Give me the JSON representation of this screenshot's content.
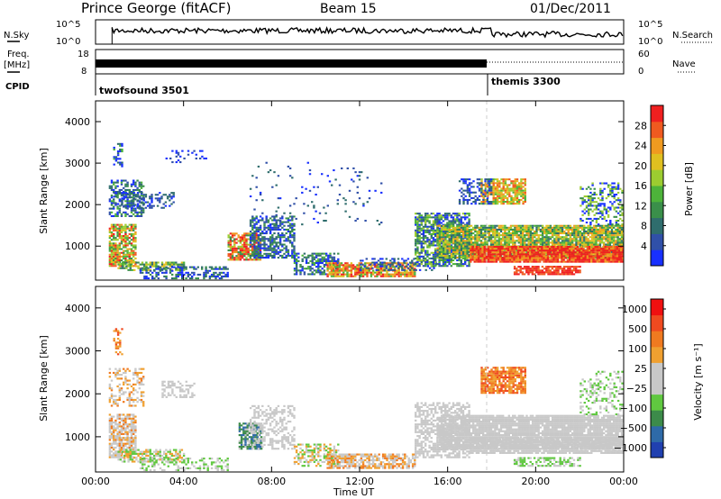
{
  "header": {
    "station": "Prince George (fitACF)",
    "beam": "Beam 15",
    "date": "01/Dec/2011"
  },
  "panels_small": {
    "nsky_label": "N.Sky",
    "nsky_ticks": [
      "10^5",
      "10^0"
    ],
    "nsearch_label": "N.Search",
    "freq_label_1": "Freq.",
    "freq_label_2": "[MHz]",
    "freq_ticks": [
      "18",
      "8"
    ],
    "nave_ticks": [
      "60",
      "0"
    ],
    "nave_label": "Nave",
    "cpid_label": "CPID",
    "cpid_programs": [
      {
        "name": "twofsound 3501",
        "start_hour": 0.75
      },
      {
        "name": "themis 3300",
        "start_hour": 18.15
      }
    ]
  },
  "chart_data": [
    {
      "type": "heatmap",
      "title": "",
      "xlabel": "Time UT",
      "ylabel": "Slant Range [km]",
      "x_range_hours": [
        0,
        24
      ],
      "x_ticks": [
        "00:00",
        "04:00",
        "08:00",
        "12:00",
        "16:00",
        "20:00",
        "00:00"
      ],
      "ylim": [
        180,
        4500
      ],
      "y_ticks": [
        1000,
        2000,
        3000,
        4000
      ],
      "colorbar": {
        "label": "Power [dB]",
        "ticks": [
          "4",
          "8",
          "12",
          "16",
          "20",
          "24",
          "28"
        ],
        "colors": [
          "#1830ff",
          "#3050a8",
          "#2f6d6d",
          "#3a8f4a",
          "#4db33a",
          "#9ccc30",
          "#e0c020",
          "#f09a20",
          "#f05a20",
          "#f02020"
        ]
      }
    },
    {
      "type": "heatmap",
      "title": "",
      "xlabel": "Time UT",
      "ylabel": "Slant Range [km]",
      "x_range_hours": [
        0,
        24
      ],
      "x_ticks": [
        "00:00",
        "04:00",
        "08:00",
        "12:00",
        "16:00",
        "20:00",
        "00:00"
      ],
      "ylim": [
        180,
        4500
      ],
      "y_ticks": [
        1000,
        2000,
        3000,
        4000
      ],
      "colorbar": {
        "label": "Velocity [m s⁻¹]",
        "ticks": [
          "1000",
          "500",
          "100",
          "25",
          "−25",
          "−100",
          "−500",
          "−1000"
        ],
        "colors": [
          "#2040b0",
          "#2e6aa8",
          "#3c8b4a",
          "#60c840",
          "#c8c8c8",
          "#c8c8c8",
          "#f0a030",
          "#f07a20",
          "#f04a20",
          "#f01010"
        ]
      }
    }
  ]
}
